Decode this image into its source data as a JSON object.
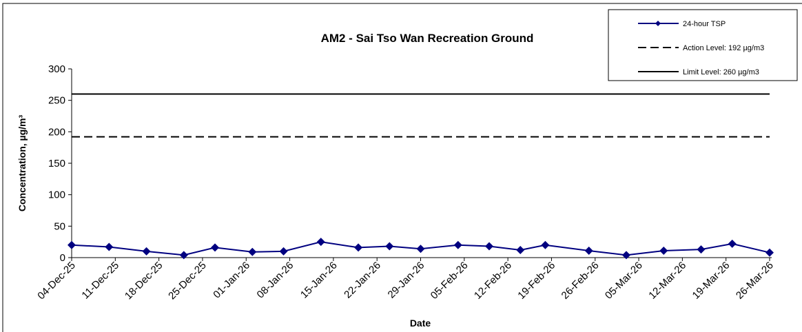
{
  "chart_data": {
    "type": "line",
    "title": "AM2 - Sai Tso Wan Recreation Ground",
    "x_label": "Date",
    "y_label": "Concentration, µg/m³",
    "x": [
      "04-Dec-25",
      "10-Dec-25",
      "16-Dec-25",
      "22-Dec-25",
      "27-Dec-25",
      "02-Jan-26",
      "07-Jan-26",
      "13-Jan-26",
      "19-Jan-26",
      "24-Jan-26",
      "29-Jan-26",
      "04-Feb-26",
      "09-Feb-26",
      "14-Feb-26",
      "18-Feb-26",
      "25-Feb-26",
      "03-Mar-26",
      "09-Mar-26",
      "15-Mar-26",
      "20-Mar-26",
      "26-Mar-26"
    ],
    "series": [
      {
        "name": "24-hour TSP",
        "color": "#000080",
        "marker": "diamond",
        "values": [
          20,
          17,
          10,
          4,
          16,
          9,
          10,
          25,
          16,
          18,
          14,
          20,
          18,
          12,
          20,
          11,
          4,
          11,
          13,
          22,
          8
        ]
      },
      {
        "name": "Action Level: 192 µg/m3",
        "color": "#000000",
        "style": "dashed",
        "x": [
          "04-Dec-25",
          "26-Mar-26"
        ],
        "values": [
          192,
          192
        ]
      },
      {
        "name": "Limit Level: 260 µg/m3",
        "color": "#000000",
        "style": "solid",
        "x": [
          "04-Dec-25",
          "26-Mar-26"
        ],
        "values": [
          260,
          260
        ]
      }
    ],
    "xlim": [
      "04-Dec-25",
      "26-Mar-26"
    ],
    "xticks": [
      "04-Dec-25",
      "11-Dec-25",
      "18-Dec-25",
      "25-Dec-25",
      "01-Jan-26",
      "08-Jan-26",
      "15-Jan-26",
      "22-Jan-26",
      "29-Jan-26",
      "05-Feb-26",
      "12-Feb-26",
      "19-Feb-26",
      "26-Feb-26",
      "05-Mar-26",
      "12-Mar-26",
      "19-Mar-26",
      "26-Mar-26"
    ],
    "ylim": [
      0,
      300
    ],
    "yticks": [
      0,
      50,
      100,
      150,
      200,
      250,
      300
    ],
    "legend": "top-right"
  }
}
